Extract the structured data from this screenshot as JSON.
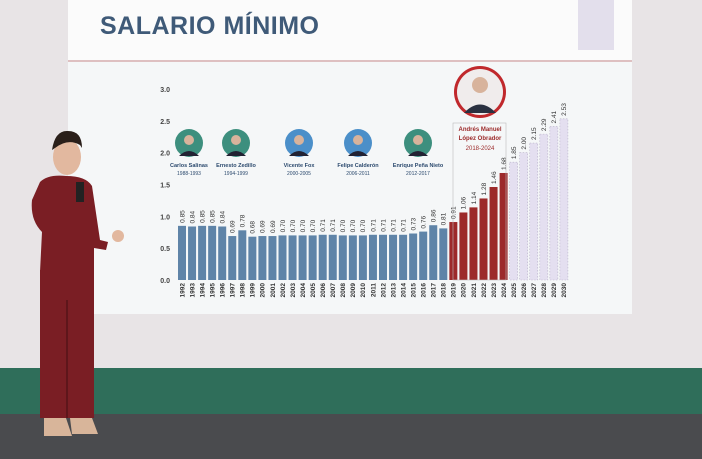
{
  "slide": {
    "title": "SALARIO MÍNIMO"
  },
  "presidents": [
    {
      "name": "Carlos Salinas",
      "term": "1988-1993"
    },
    {
      "name": "Ernesto Zedillo",
      "term": "1994-1999"
    },
    {
      "name": "Vicente Fox",
      "term": "2000-2005"
    },
    {
      "name": "Felipe Calderón",
      "term": "2006-2011"
    },
    {
      "name": "Enrique Peña Nieto",
      "term": "2012-2017"
    },
    {
      "name_line1": "Andrés Manuel",
      "name_line2": "López Obrador",
      "term": "2018-2024"
    }
  ],
  "colors": {
    "historic_bar": "#5f84a8",
    "amlo_bar": "#9c2a2a",
    "projected_bar": "#e4dff0",
    "title": "#3f5a78"
  },
  "chart_data": {
    "type": "bar",
    "title": "SALARIO MÍNIMO",
    "xlabel": "",
    "ylabel": "",
    "ylim": [
      0,
      3.0
    ],
    "yticks": [
      "0.0",
      "0.5",
      "1.0",
      "1.5",
      "2.0",
      "2.5",
      "3.0"
    ],
    "grid": false,
    "categories": [
      "1992",
      "1993",
      "1994",
      "1995",
      "1996",
      "1997",
      "1998",
      "1999",
      "2000",
      "2001",
      "2002",
      "2003",
      "2004",
      "2005",
      "2006",
      "2007",
      "2008",
      "2009",
      "2010",
      "2011",
      "2012",
      "2013",
      "2014",
      "2015",
      "2016",
      "2017",
      "2018",
      "2019",
      "2020",
      "2021",
      "2022",
      "2023",
      "2024",
      "2025",
      "2026",
      "2027",
      "2028",
      "2029",
      "2030"
    ],
    "values": [
      0.85,
      0.84,
      0.85,
      0.85,
      0.84,
      0.69,
      0.78,
      0.68,
      0.69,
      0.69,
      0.7,
      0.7,
      0.7,
      0.7,
      0.71,
      0.71,
      0.7,
      0.7,
      0.7,
      0.71,
      0.71,
      0.71,
      0.71,
      0.73,
      0.76,
      0.86,
      0.81,
      0.91,
      1.06,
      1.14,
      1.28,
      1.46,
      1.68,
      1.85,
      2.0,
      2.15,
      2.29,
      2.41,
      2.53
    ],
    "value_labels": [
      "0.85",
      "0.84",
      "0.85",
      "0.85",
      "0.84",
      "0.69",
      "0.78",
      "0.68",
      "0.69",
      "0.69",
      "0.70",
      "0.70",
      "0.70",
      "0.70",
      "0.71",
      "0.71",
      "0.70",
      "0.70",
      "0.70",
      "0.71",
      "0.71",
      "0.71",
      "0.71",
      "0.73",
      "0.76",
      "0.86",
      "0.81",
      "0.91",
      "1.06",
      "1.14",
      "1.28",
      "1.46",
      "1.68",
      "1.85",
      "2.00",
      "2.15",
      "2.29",
      "2.41",
      "2.53"
    ],
    "bar_style": {
      "historic": "1992-2018",
      "amlo": "2019-2024",
      "projected_dashed": "2025-2030"
    }
  }
}
